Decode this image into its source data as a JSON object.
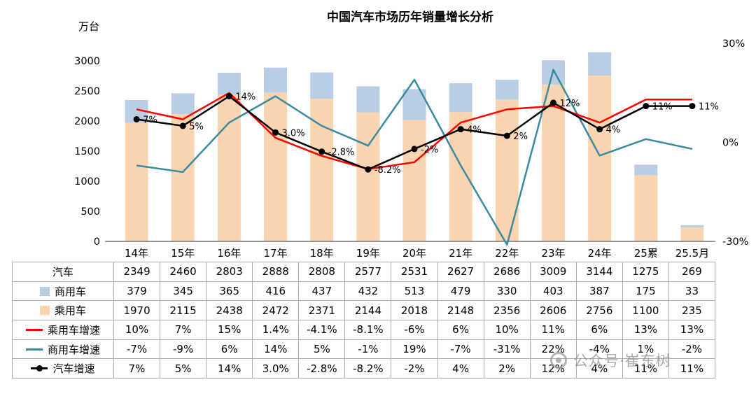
{
  "title": "中国汽车市场历年销量增长分析",
  "left_axis_unit": "万台",
  "watermark": {
    "text": "公众号·崔东树"
  },
  "chart_data": {
    "type": "combo-stacked-bar-line",
    "title": "中国汽车市场历年销量增长分析",
    "categories": [
      "14年",
      "15年",
      "16年",
      "17年",
      "18年",
      "19年",
      "20年",
      "21年",
      "22年",
      "23年",
      "24年",
      "25累",
      "25.5月"
    ],
    "bar_series": [
      {
        "name": "乘用车",
        "color": "#fbd5b1",
        "axis": "left",
        "values": [
          1970,
          2115,
          2438,
          2472,
          2371,
          2144,
          2018,
          2148,
          2356,
          2606,
          2756,
          1100,
          235
        ]
      },
      {
        "name": "商用车",
        "color": "#b9cde4",
        "axis": "left",
        "values": [
          379,
          345,
          365,
          416,
          437,
          432,
          513,
          479,
          330,
          403,
          387,
          175,
          33
        ]
      }
    ],
    "line_series": [
      {
        "name": "商用车增速",
        "color": "#3a8ba0",
        "axis": "right",
        "marker": false,
        "values": [
          -7,
          -9,
          6,
          14,
          5,
          -1,
          19,
          -7,
          -31,
          22,
          -4,
          1,
          -2
        ]
      },
      {
        "name": "乘用车增速",
        "color": "#ff0000",
        "axis": "right",
        "marker": false,
        "values": [
          10,
          7,
          15,
          1.4,
          -4.1,
          -8.1,
          -6,
          6,
          10,
          11,
          6,
          13,
          13
        ]
      },
      {
        "name": "汽车增速",
        "color": "#000000",
        "axis": "right",
        "marker": true,
        "values": [
          7,
          5,
          14,
          3.0,
          -2.8,
          -8.2,
          -2,
          4,
          2,
          12,
          4,
          11,
          11
        ],
        "labels": [
          "7%",
          "5%",
          "14%",
          "3.0%",
          "-2.8%",
          "-8.2%",
          "-2%",
          "4%",
          "2%",
          "12%",
          "4%",
          "11%",
          "11%"
        ]
      }
    ],
    "left_axis": {
      "unit": "万台",
      "ticks": [
        0,
        500,
        1000,
        1500,
        2000,
        2500,
        3000
      ]
    },
    "right_axis": {
      "ticks": [
        "30%",
        "0%",
        "-30%"
      ],
      "tick_values": [
        30,
        0,
        -30
      ],
      "min": -30,
      "max": 30
    },
    "grid": false,
    "legend_position": "table-left"
  },
  "table": {
    "rows": [
      {
        "label": "汽车",
        "icon": "none",
        "color": "",
        "values": [
          "2349",
          "2460",
          "2803",
          "2888",
          "2808",
          "2577",
          "2531",
          "2627",
          "2686",
          "3009",
          "3144",
          "1275",
          "269"
        ]
      },
      {
        "label": "商用车",
        "icon": "bar",
        "color": "#b9cde4",
        "values": [
          "379",
          "345",
          "365",
          "416",
          "437",
          "432",
          "513",
          "479",
          "330",
          "403",
          "387",
          "175",
          "33"
        ]
      },
      {
        "label": "乘用车",
        "icon": "bar",
        "color": "#fbd5b1",
        "values": [
          "1970",
          "2115",
          "2438",
          "2472",
          "2371",
          "2144",
          "2018",
          "2148",
          "2356",
          "2606",
          "2756",
          "1100",
          "235"
        ]
      },
      {
        "label": "乘用车增速",
        "icon": "line",
        "color": "#ff0000",
        "values": [
          "10%",
          "7%",
          "15%",
          "1.4%",
          "-4.1%",
          "-8.1%",
          "-6%",
          "6%",
          "10%",
          "11%",
          "6%",
          "13%",
          "13%"
        ]
      },
      {
        "label": "商用车增速",
        "icon": "line",
        "color": "#3a8ba0",
        "values": [
          "-7%",
          "-9%",
          "6%",
          "14%",
          "5%",
          "-1%",
          "19%",
          "-7%",
          "-31%",
          "22%",
          "-4%",
          "1%",
          "-2%"
        ]
      },
      {
        "label": "汽车增速",
        "icon": "line-marker",
        "color": "#000000",
        "values": [
          "7%",
          "5%",
          "14%",
          "3.0%",
          "-2.8%",
          "-8.2%",
          "-2%",
          "4%",
          "2%",
          "12%",
          "4%",
          "11%",
          "11%"
        ]
      }
    ]
  }
}
